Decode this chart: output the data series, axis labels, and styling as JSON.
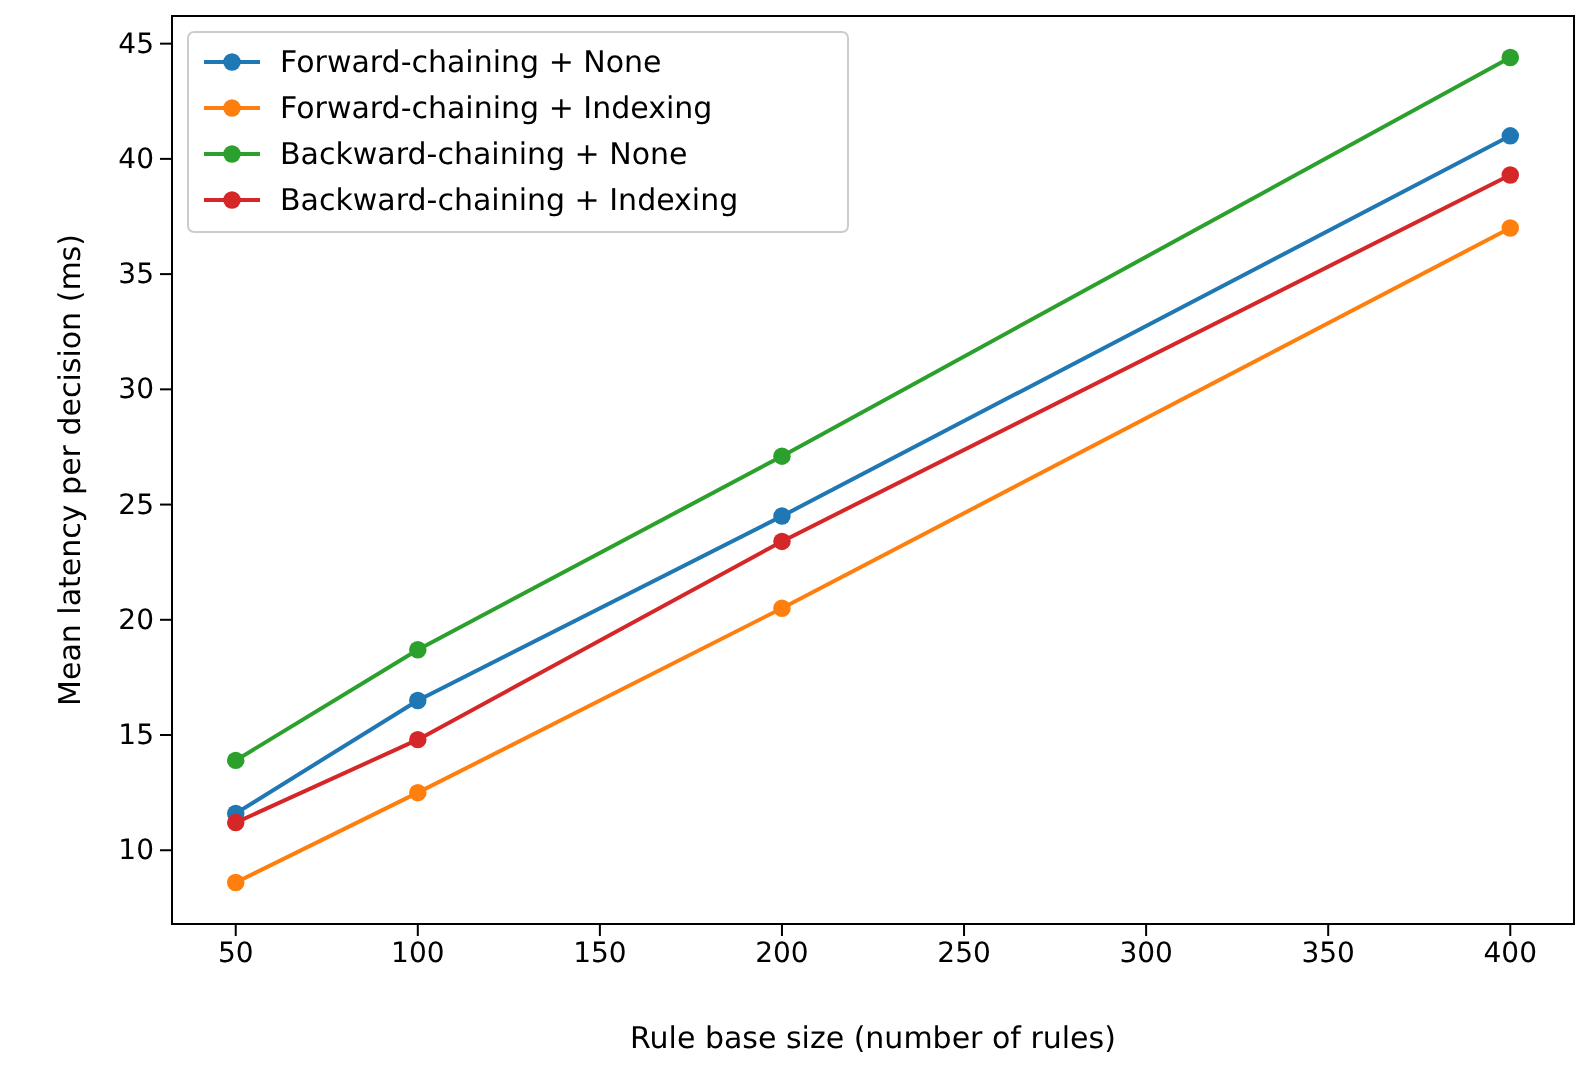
{
  "chart_data": {
    "type": "line",
    "xlabel": "Rule base size (number of rules)",
    "ylabel": "Mean latency per decision (ms)",
    "x": [
      50,
      100,
      200,
      400
    ],
    "series": [
      {
        "name": "Forward-chaining + None",
        "color": "#1f77b4",
        "values": [
          11.6,
          16.5,
          24.5,
          41.0
        ]
      },
      {
        "name": "Forward-chaining + Indexing",
        "color": "#ff7f0e",
        "values": [
          8.6,
          12.5,
          20.5,
          37.0
        ]
      },
      {
        "name": "Backward-chaining + None",
        "color": "#2ca02c",
        "values": [
          13.9,
          18.7,
          27.1,
          44.4
        ]
      },
      {
        "name": "Backward-chaining + Indexing",
        "color": "#d62728",
        "values": [
          11.2,
          14.8,
          23.4,
          39.3
        ]
      }
    ],
    "xlim": [
      32.5,
      417.5
    ],
    "xticks": [
      50,
      100,
      150,
      200,
      250,
      300,
      350,
      400
    ],
    "ylim": [
      6.8,
      46.2
    ],
    "yticks": [
      10,
      15,
      20,
      25,
      30,
      35,
      40,
      45
    ],
    "grid": false,
    "legend": "top left",
    "marker": "circle",
    "line_style": "solid"
  }
}
